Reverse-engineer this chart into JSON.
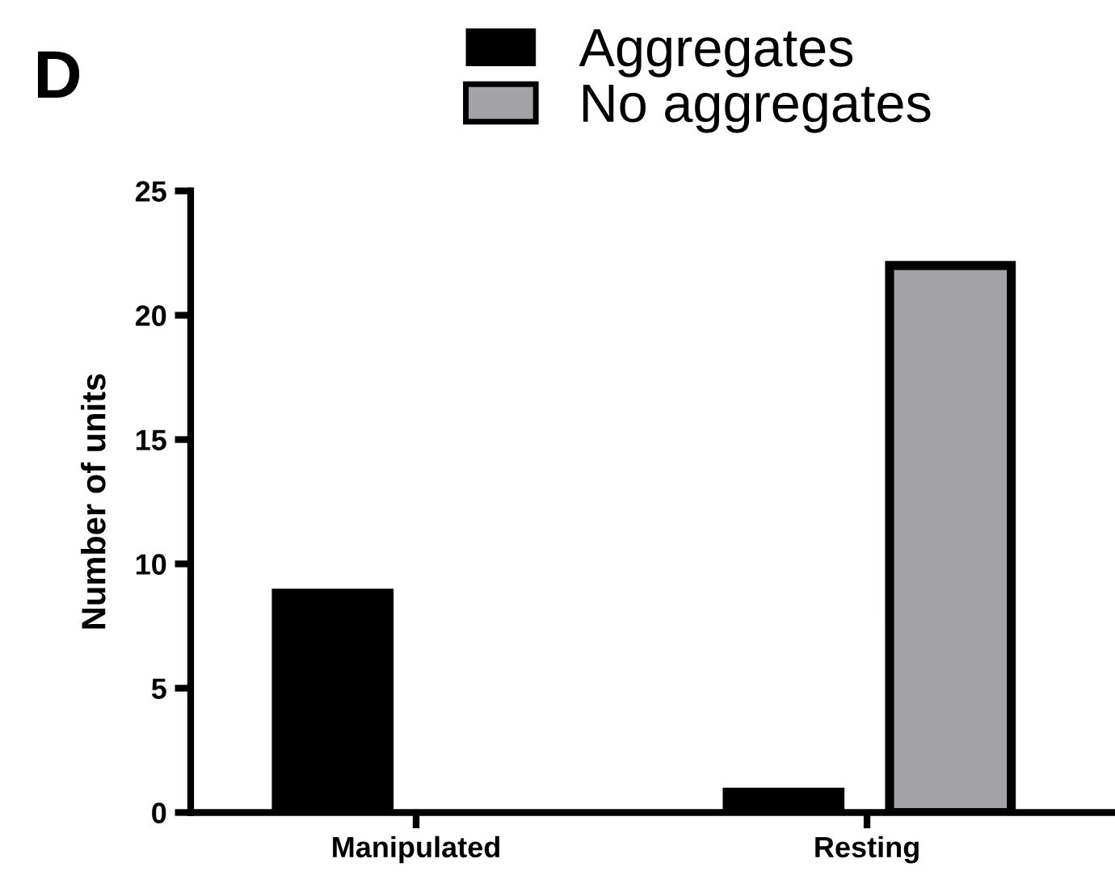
{
  "chart_data": {
    "type": "bar",
    "ylabel": "Number of units",
    "categories": [
      "Manipulated",
      "Resting"
    ],
    "series": [
      {
        "name": "Aggregates",
        "color": "#000000",
        "values": [
          9,
          1
        ]
      },
      {
        "name": "No aggregates",
        "color": "#a3a2a7",
        "values": [
          null,
          22
        ]
      }
    ],
    "ylim": [
      0,
      25
    ],
    "yticks": [
      0,
      5,
      10,
      15,
      20,
      25
    ],
    "grid": false,
    "legend": "top",
    "annotations": [
      "D"
    ]
  }
}
